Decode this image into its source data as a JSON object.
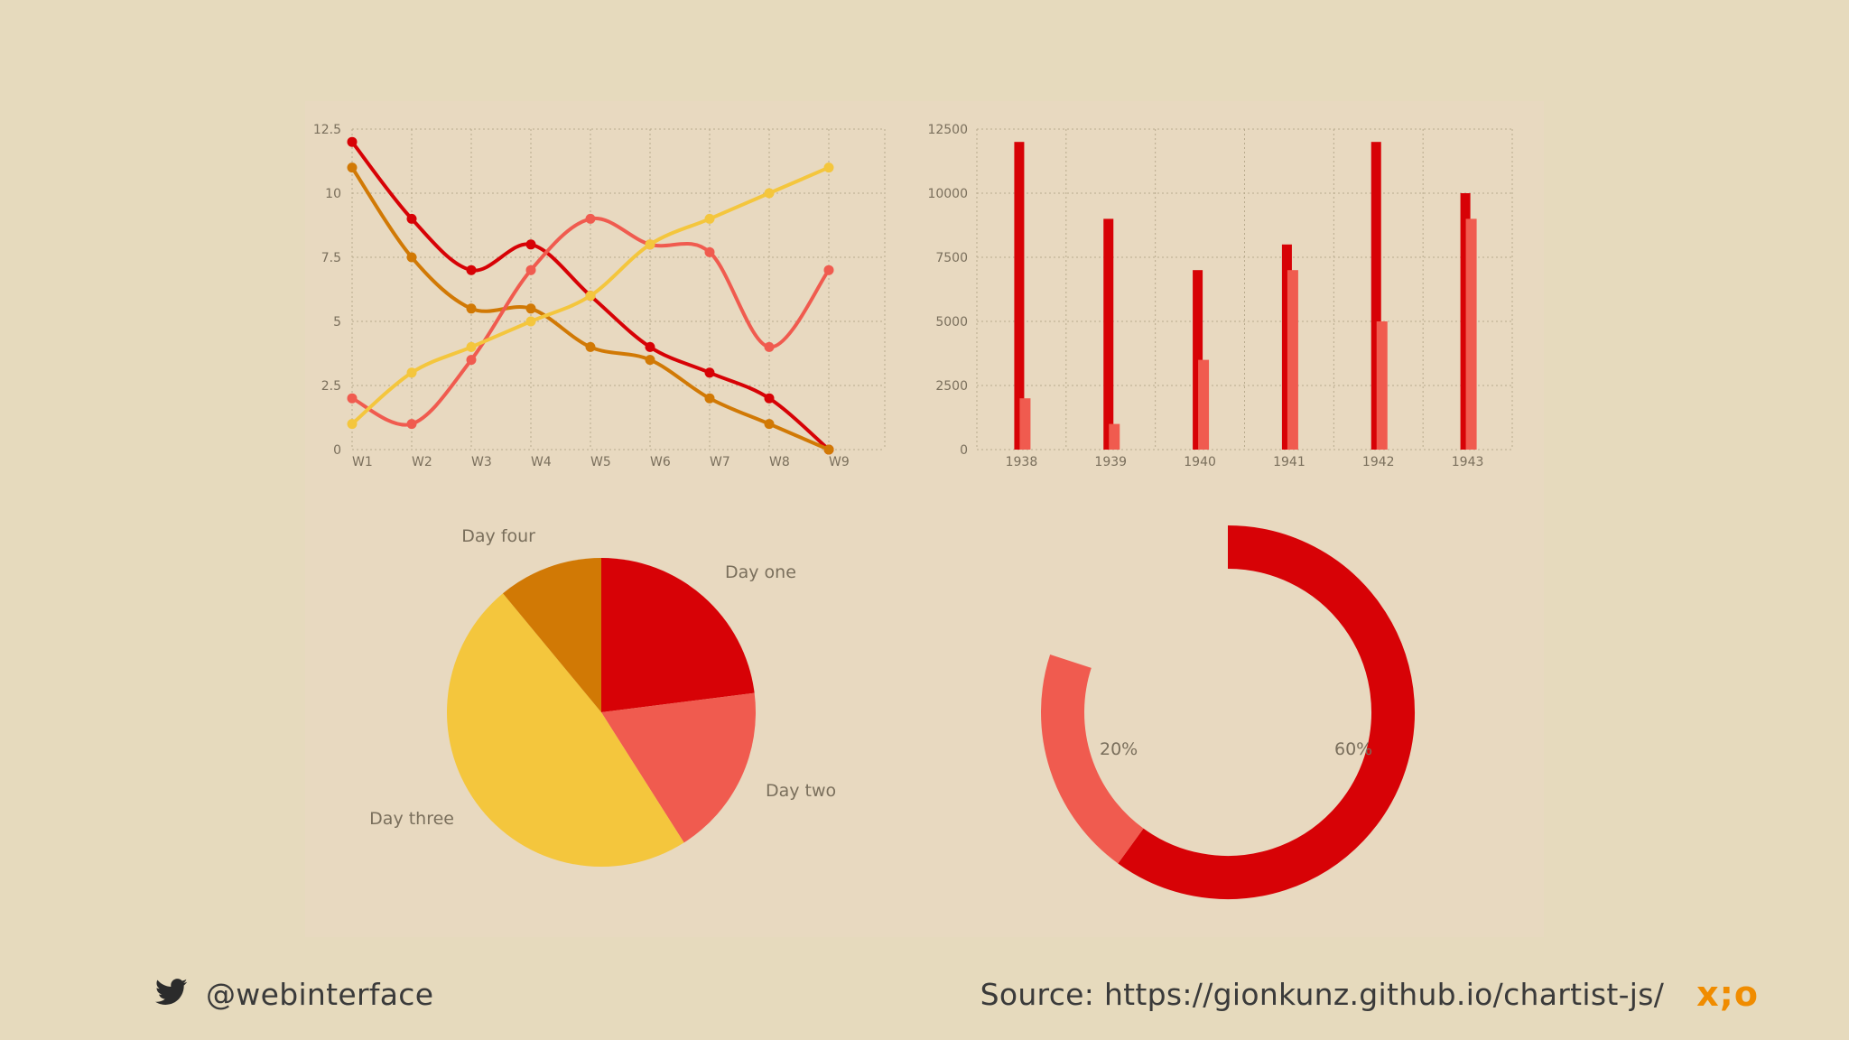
{
  "colors": {
    "background": "#e6dabd",
    "panel": "#e8d9c0",
    "red": "#d70206",
    "salmon": "#f05b4f",
    "yellow": "#f4c63d",
    "orange": "#d17905",
    "grid": "#b9ab8e",
    "axis_text": "#7a6f5c",
    "footer_text": "#3a3a3a",
    "logo": "#f08c00"
  },
  "footer": {
    "twitter_icon": "twitter-bird-icon",
    "handle": "@webinterface",
    "source": "Source: https://gionkunz.github.io/chartist-js/",
    "logo": "x;o"
  },
  "chart_data": [
    {
      "type": "line",
      "categories": [
        "W1",
        "W2",
        "W3",
        "W4",
        "W5",
        "W6",
        "W7",
        "W8",
        "W9"
      ],
      "y_ticks": [
        "0",
        "2.5",
        "5",
        "7.5",
        "10",
        "12.5"
      ],
      "ylim": [
        0,
        12.5
      ],
      "grid": true,
      "series": [
        {
          "color": "red",
          "values": [
            12,
            9,
            7,
            8,
            6,
            4,
            3,
            2,
            0
          ]
        },
        {
          "color": "orange",
          "values": [
            11,
            7.5,
            5.5,
            5.5,
            4,
            3.5,
            2,
            1,
            0
          ]
        },
        {
          "color": "salmon",
          "values": [
            2,
            1,
            3.5,
            7,
            9,
            8,
            7.7,
            4,
            7
          ]
        },
        {
          "color": "yellow",
          "values": [
            1,
            3,
            4,
            5,
            6,
            8,
            9,
            10,
            11
          ]
        }
      ]
    },
    {
      "type": "bar",
      "categories": [
        "1938",
        "1939",
        "1940",
        "1941",
        "1942",
        "1943"
      ],
      "y_ticks": [
        "0",
        "2500",
        "5000",
        "7500",
        "10000",
        "12500"
      ],
      "ylim": [
        0,
        12500
      ],
      "grid": true,
      "series": [
        {
          "color": "red",
          "values": [
            12000,
            9000,
            7000,
            8000,
            12000,
            10000
          ]
        },
        {
          "color": "salmon",
          "values": [
            2000,
            1000,
            3500,
            7000,
            5000,
            9000
          ]
        }
      ]
    },
    {
      "type": "pie",
      "labels": [
        "Day one",
        "Day two",
        "Day three",
        "Day four"
      ],
      "values": [
        23,
        18,
        48,
        11
      ],
      "colors": [
        "red",
        "salmon",
        "yellow",
        "orange"
      ]
    },
    {
      "type": "donut",
      "labels": [
        "60%",
        "20%"
      ],
      "values": [
        60,
        20
      ],
      "total": 100,
      "colors": [
        "red",
        "salmon"
      ]
    }
  ]
}
